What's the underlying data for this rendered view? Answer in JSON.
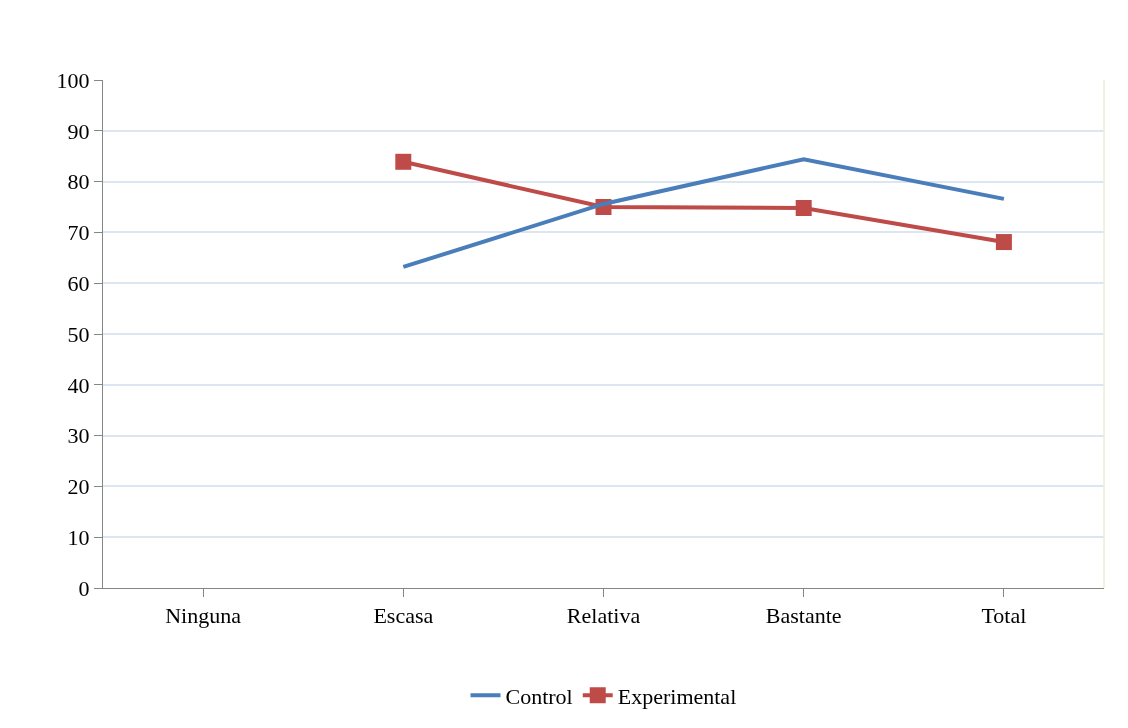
{
  "chart_data": {
    "type": "line",
    "categories": [
      "Ninguna",
      "Escasa",
      "Relativa",
      "Bastante",
      "Total"
    ],
    "series": [
      {
        "name": "Control",
        "color": "#4a7ebb",
        "marker": "none",
        "values": [
          null,
          63.2,
          75.6,
          84.4,
          76.6
        ]
      },
      {
        "name": "Experimental",
        "color": "#be4b48",
        "marker": "square",
        "values": [
          null,
          83.9,
          75.0,
          74.8,
          68.1
        ]
      }
    ],
    "ylim": [
      0,
      100
    ],
    "yticks": [
      0,
      10,
      20,
      30,
      40,
      50,
      60,
      70,
      80,
      90,
      100
    ],
    "grid": "y",
    "legend": "bottom",
    "line_style": "solid"
  }
}
